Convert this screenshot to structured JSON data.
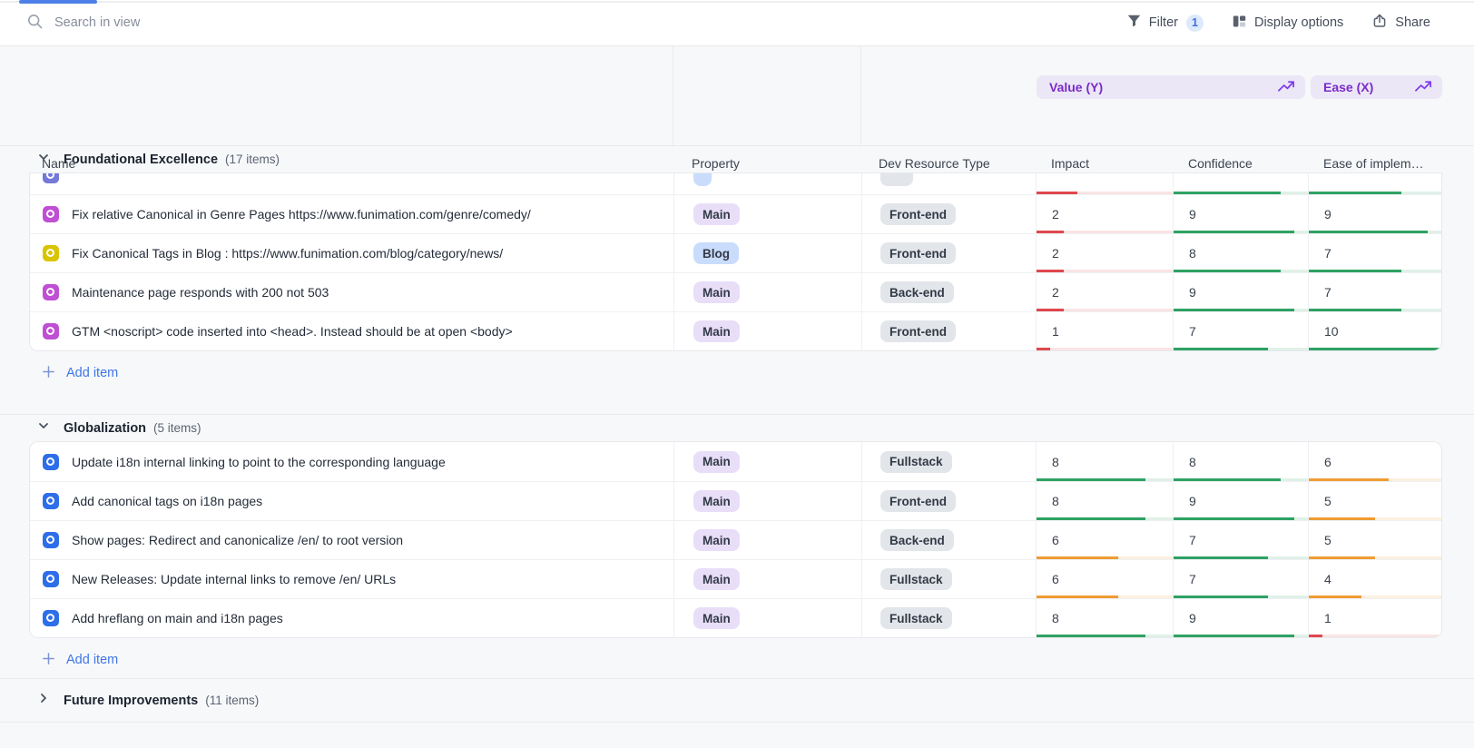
{
  "topbar": {
    "search_placeholder": "Search in view",
    "filter_label": "Filter",
    "filter_count": "1",
    "display_options_label": "Display options",
    "share_label": "Share"
  },
  "table": {
    "column_groups": {
      "value": {
        "label": "Value (Y)"
      },
      "ease": {
        "label": "Ease (X)"
      }
    },
    "columns": {
      "name": "Name",
      "property": "Property",
      "dev_resource_type": "Dev Resource Type",
      "impact": "Impact",
      "confidence": "Confidence",
      "ease": "Ease of implem…"
    }
  },
  "add_item_label": "Add item",
  "colors": {
    "icons": {
      "purple": "#bf4fd3",
      "yellow": "#d9c400",
      "blue": "#2e6ee8",
      "indigo": "#7478d8"
    },
    "badges": {
      "main": "#e9def8",
      "blog": "#cadcfc",
      "gray": "#e2e5e9"
    },
    "bars": {
      "red": "#e0474e",
      "orange": "#f09c33",
      "green": "#2ea263"
    },
    "accent_blue": "#3f76e6",
    "header_pill_bg": "#ebe7f6",
    "header_pill_text": "#7a2bc9"
  },
  "groups": [
    {
      "title": "Foundational Excellence",
      "count_label": "(17 items)",
      "collapsed": false,
      "clipped_top": true,
      "rows": [
        {
          "partial": true,
          "icon": "indigo",
          "name": "",
          "property": "",
          "property_variant": "blog",
          "dev_type": "",
          "impact": 3,
          "confidence": 8,
          "ease": 7
        },
        {
          "icon": "purple",
          "name": "Fix relative Canonical in Genre Pages https://www.funimation.com/genre/comedy/",
          "property": "Main",
          "property_variant": "main",
          "dev_type": "Front-end",
          "impact": 2,
          "confidence": 9,
          "ease": 9
        },
        {
          "icon": "yellow",
          "name": "Fix Canonical Tags in Blog : https://www.funimation.com/blog/category/news/",
          "property": "Blog",
          "property_variant": "blog",
          "dev_type": "Front-end",
          "impact": 2,
          "confidence": 8,
          "ease": 7
        },
        {
          "icon": "purple",
          "name": "Maintenance page responds with 200 not 503",
          "property": "Main",
          "property_variant": "main",
          "dev_type": "Back-end",
          "impact": 2,
          "confidence": 9,
          "ease": 7
        },
        {
          "icon": "purple",
          "name": "GTM <noscript> code inserted into <head>. Instead should be at open <body>",
          "property": "Main",
          "property_variant": "main",
          "dev_type": "Front-end",
          "impact": 1,
          "confidence": 7,
          "ease": 10
        }
      ]
    },
    {
      "title": "Globalization",
      "count_label": "(5 items)",
      "collapsed": false,
      "clipped_top": false,
      "rows": [
        {
          "icon": "blue",
          "name": "Update i18n internal linking to point to the corresponding language",
          "property": "Main",
          "property_variant": "main",
          "dev_type": "Fullstack",
          "impact": 8,
          "confidence": 8,
          "ease": 6
        },
        {
          "icon": "blue",
          "name": "Add canonical tags on i18n pages",
          "property": "Main",
          "property_variant": "main",
          "dev_type": "Front-end",
          "impact": 8,
          "confidence": 9,
          "ease": 5
        },
        {
          "icon": "blue",
          "name": "Show pages: Redirect and canonicalize /en/ to root version",
          "property": "Main",
          "property_variant": "main",
          "dev_type": "Back-end",
          "impact": 6,
          "confidence": 7,
          "ease": 5
        },
        {
          "icon": "blue",
          "name": "New Releases: Update internal links to remove /en/ URLs",
          "property": "Main",
          "property_variant": "main",
          "dev_type": "Fullstack",
          "impact": 6,
          "confidence": 7,
          "ease": 4
        },
        {
          "icon": "blue",
          "name": "Add hreflang on main and i18n pages",
          "property": "Main",
          "property_variant": "main",
          "dev_type": "Fullstack",
          "impact": 8,
          "confidence": 9,
          "ease": 1
        }
      ]
    },
    {
      "title": "Future Improvements",
      "count_label": "(11 items)",
      "collapsed": true,
      "rows": []
    }
  ]
}
